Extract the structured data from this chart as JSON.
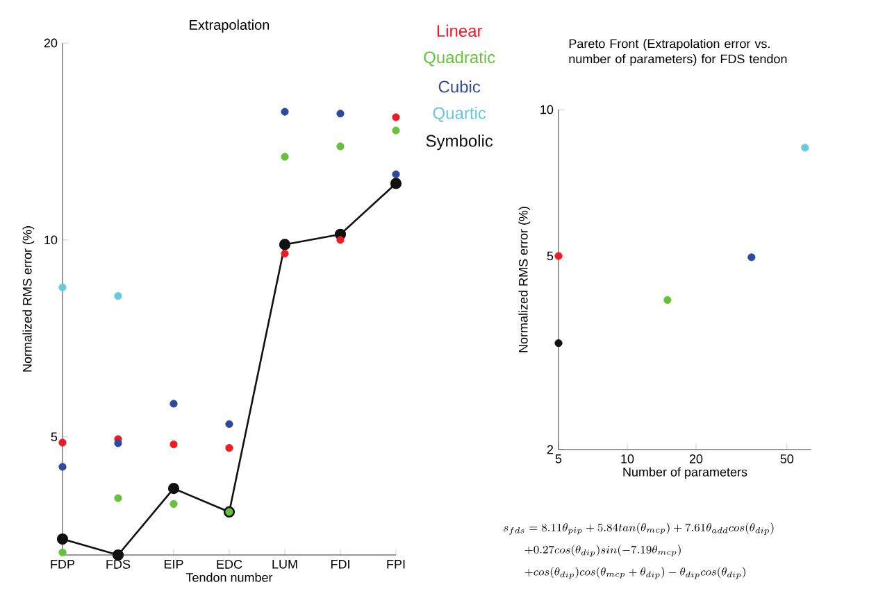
{
  "chart_data": [
    {
      "type": "scatter",
      "title": "Extrapolation",
      "xlabel": "Tendon number",
      "ylabel": "Normalized RMS error (%)",
      "categories": [
        "FDP",
        "FDS",
        "EIP",
        "EDC",
        "LUM",
        "FDI",
        "FPI"
      ],
      "log": "y",
      "ylim": [
        3.3,
        20
      ],
      "yticks": [
        5,
        10,
        20
      ],
      "marker": "circle",
      "legend": "top right",
      "series": [
        {
          "name": "Linear",
          "color": "#ed1c24",
          "values": [
            4.9,
            4.96,
            4.87,
            4.81,
            9.53,
            10.0,
            15.4
          ]
        },
        {
          "name": "Quadratic",
          "color": "#66c23a",
          "values": [
            3.33,
            4.03,
            3.95,
            3.84,
            13.4,
            13.9,
            14.7
          ]
        },
        {
          "name": "Cubic",
          "color": "#2e4a9e",
          "values": [
            4.5,
            4.89,
            5.62,
            5.23,
            15.7,
            15.6,
            12.6
          ]
        },
        {
          "name": "Quartic",
          "color": "#66c9dc",
          "values": [
            8.46,
            8.21,
            null,
            null,
            null,
            null,
            null
          ]
        },
        {
          "name": "Symbolic",
          "type": "line",
          "color": "#111111",
          "values": [
            3.49,
            3.3,
            4.17,
            3.84,
            9.84,
            10.2,
            12.2
          ]
        }
      ]
    },
    {
      "type": "scatter",
      "title": "Pareto Front (Extrapolation error vs. number of parameters) for FDS tendon",
      "xlabel": "Number of parameters",
      "ylabel": "Normalized RMS error (%)",
      "log": "xy",
      "xlim": [
        5,
        64
      ],
      "xticks": [
        5,
        10,
        20,
        50
      ],
      "ylim": [
        2,
        10
      ],
      "yticks": [
        2,
        5,
        10
      ],
      "marker": "circle",
      "x": [
        5,
        15,
        35,
        60,
        5
      ],
      "values": [
        5.0,
        4.06,
        4.97,
        8.35,
        3.31
      ],
      "colors": [
        "#ed1c24",
        "#66c23a",
        "#2e4a9e",
        "#66c9dc",
        "#111111"
      ],
      "annotations": [
        "s_{fds} = 8.11\\theta_{pip} + 5.84 tan(\\theta_{mcp}) + 7.61\\theta_{add} cos(\\theta_{dip})",
        "+ 0.27 cos(\\theta_{dip}) sin(-7.19\\theta_{mcp})",
        "+ cos(\\theta_{dip}) cos(\\theta_{mcp} + \\theta_{dip}) - \\theta_{dip} cos(\\theta_{dip})"
      ]
    }
  ]
}
